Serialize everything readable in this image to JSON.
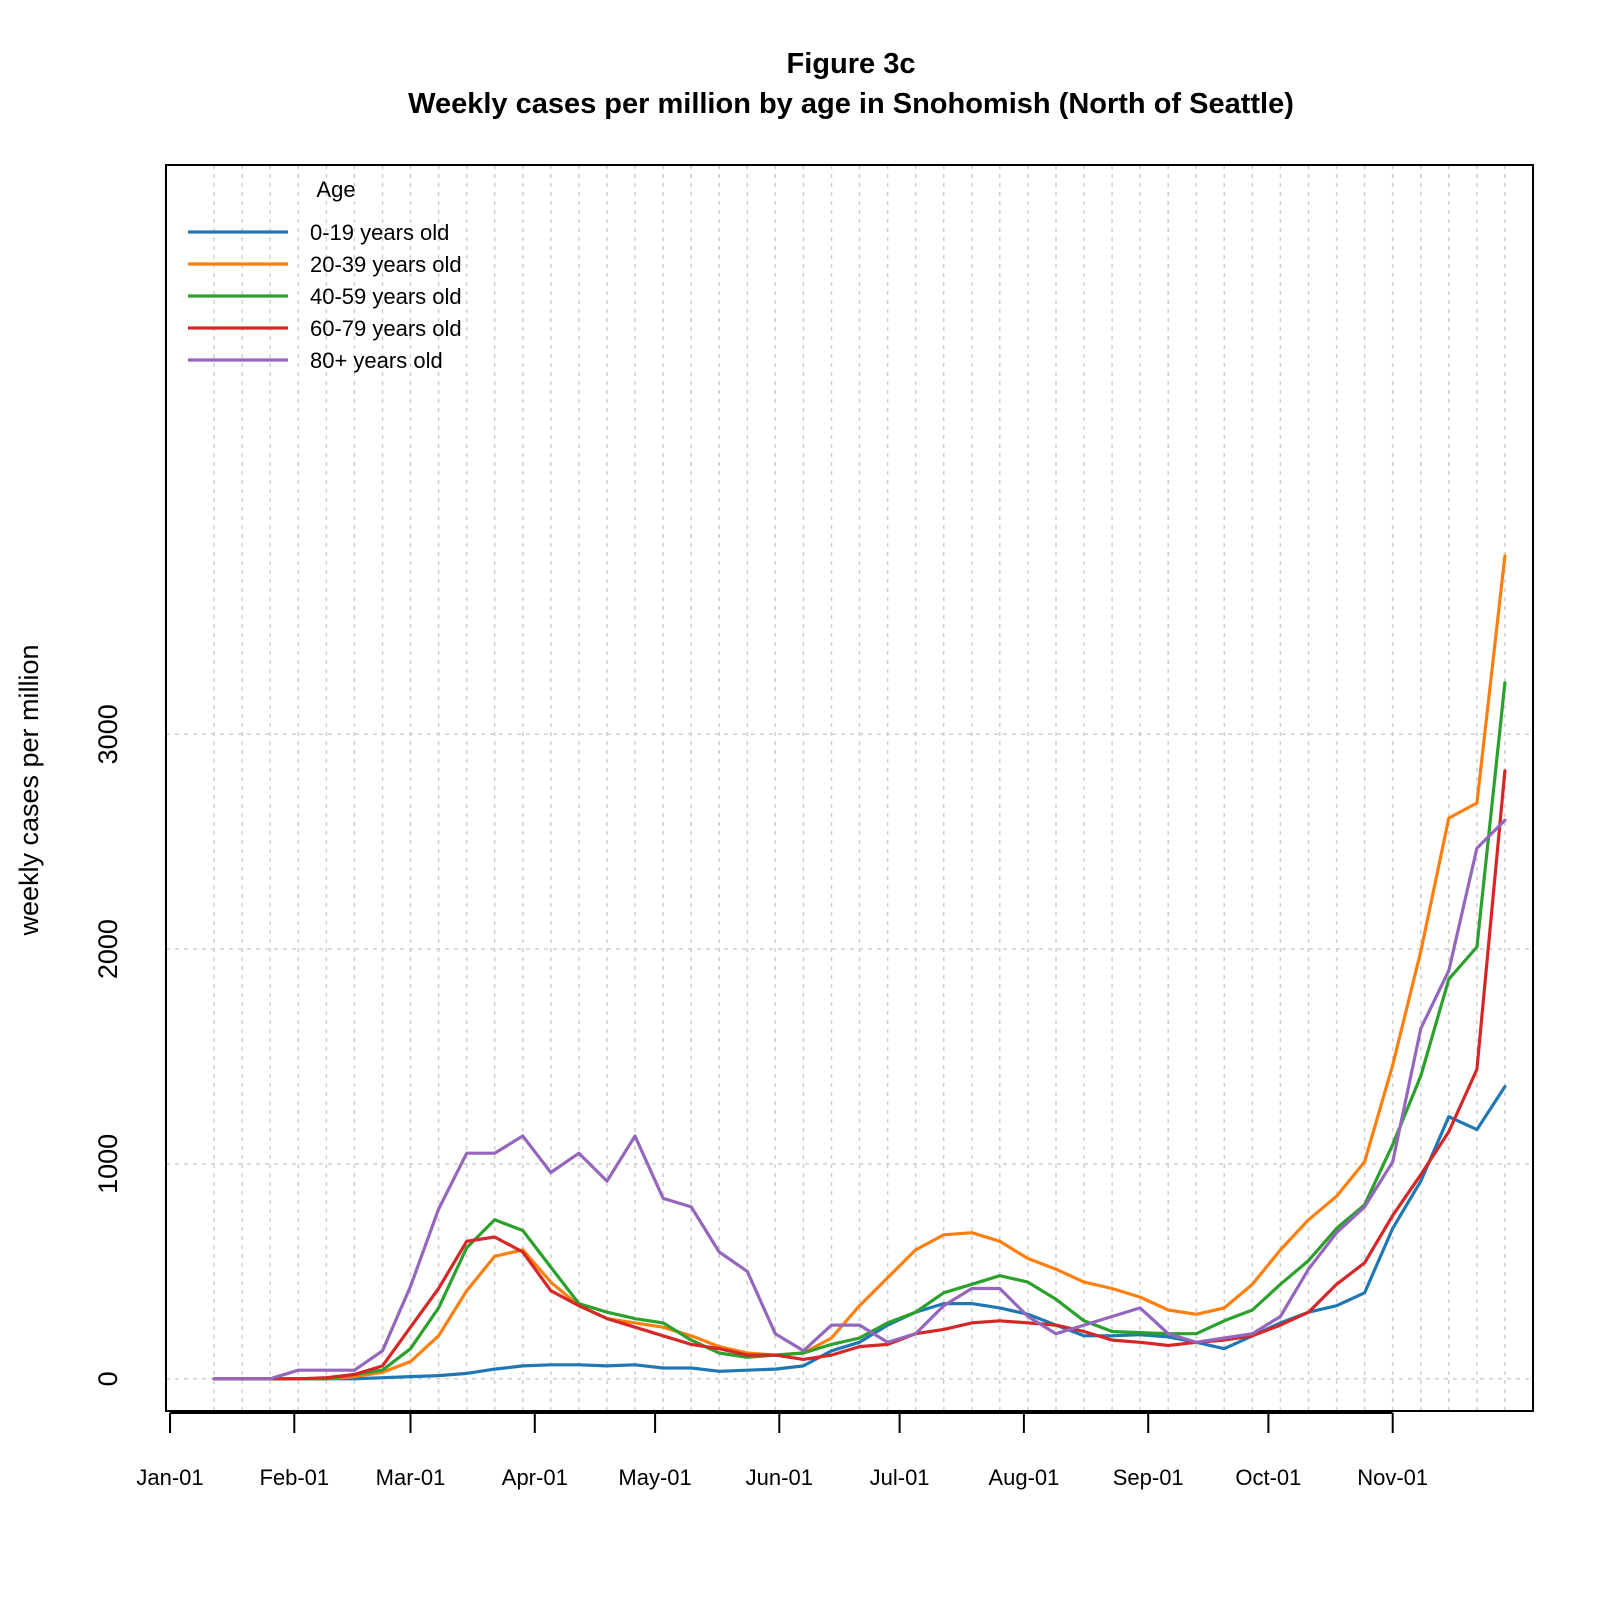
{
  "chart_data": {
    "type": "line",
    "title": "Figure 3c",
    "subtitle": "Weekly cases per million by age in Snohomish (North of Seattle)",
    "xlabel": "",
    "ylabel": "weekly cases per million",
    "xlim": [
      -1,
      340
    ],
    "ylim": [
      -150,
      5650
    ],
    "yticks": [
      0,
      1000,
      2000,
      3000
    ],
    "ytick_labels": [
      "0",
      "1000",
      "2000",
      "3000"
    ],
    "xticks": [
      {
        "label": "Jan-01",
        "day": 0
      },
      {
        "label": "Feb-01",
        "day": 31
      },
      {
        "label": "Mar-01",
        "day": 60
      },
      {
        "label": "Apr-01",
        "day": 91
      },
      {
        "label": "May-01",
        "day": 121
      },
      {
        "label": "Jun-01",
        "day": 152
      },
      {
        "label": "Jul-01",
        "day": 182
      },
      {
        "label": "Aug-01",
        "day": 213
      },
      {
        "label": "Sep-01",
        "day": 244
      },
      {
        "label": "Oct-01",
        "day": 274
      },
      {
        "label": "Nov-01",
        "day": 305
      }
    ],
    "grid": true,
    "legend": {
      "title": "Age",
      "placement": "top-left"
    },
    "x": [
      11,
      18,
      25,
      32,
      39,
      46,
      53,
      60,
      67,
      74,
      81,
      88,
      95,
      102,
      109,
      116,
      123,
      130,
      137,
      144,
      151,
      158,
      165,
      172,
      179,
      186,
      193,
      200,
      207,
      214,
      221,
      228,
      235,
      242,
      249,
      256,
      263,
      270,
      277,
      284,
      291,
      298,
      305,
      312,
      319,
      326,
      333
    ],
    "series": [
      {
        "name": "0-19 years old",
        "color": "#1f77b4",
        "values": [
          0,
          0,
          0,
          0,
          0,
          0,
          5,
          10,
          15,
          25,
          45,
          60,
          65,
          65,
          60,
          65,
          50,
          50,
          35,
          40,
          45,
          60,
          130,
          170,
          250,
          310,
          350,
          350,
          330,
          300,
          250,
          200,
          200,
          205,
          195,
          170,
          140,
          200,
          260,
          310,
          340,
          400,
          700,
          920,
          1220,
          1160,
          1360
        ]
      },
      {
        "name": "20-39 years old",
        "color": "#ff7f0e",
        "values": [
          0,
          0,
          0,
          0,
          0,
          10,
          30,
          80,
          200,
          410,
          570,
          600,
          450,
          340,
          280,
          260,
          240,
          200,
          150,
          120,
          110,
          120,
          190,
          340,
          470,
          600,
          670,
          680,
          640,
          560,
          510,
          450,
          420,
          380,
          320,
          300,
          330,
          440,
          600,
          740,
          850,
          1010,
          1460,
          1990,
          2610,
          2680,
          3830
        ]
      },
      {
        "name": "40-59 years old",
        "color": "#2ca02c",
        "values": [
          0,
          0,
          0,
          0,
          0,
          20,
          40,
          140,
          330,
          610,
          740,
          690,
          520,
          350,
          310,
          280,
          260,
          180,
          120,
          100,
          110,
          120,
          160,
          190,
          260,
          310,
          400,
          440,
          480,
          450,
          370,
          270,
          220,
          215,
          210,
          210,
          270,
          320,
          440,
          550,
          700,
          810,
          1090,
          1410,
          1860,
          2010,
          3240
        ]
      },
      {
        "name": "60-79 years old",
        "color": "#d62728",
        "values": [
          0,
          0,
          0,
          0,
          5,
          20,
          60,
          240,
          420,
          640,
          660,
          590,
          410,
          340,
          280,
          240,
          200,
          160,
          140,
          110,
          110,
          90,
          110,
          150,
          160,
          210,
          230,
          260,
          270,
          260,
          250,
          220,
          180,
          170,
          155,
          170,
          180,
          200,
          250,
          310,
          440,
          540,
          760,
          950,
          1150,
          1440,
          2830
        ]
      },
      {
        "name": "80+ years old",
        "color": "#9467bd",
        "values": [
          0,
          0,
          0,
          40,
          40,
          40,
          130,
          430,
          790,
          1050,
          1050,
          1130,
          960,
          1050,
          920,
          1130,
          840,
          800,
          590,
          500,
          210,
          130,
          250,
          250,
          170,
          210,
          340,
          420,
          420,
          290,
          210,
          250,
          290,
          330,
          210,
          170,
          190,
          210,
          290,
          510,
          680,
          800,
          1010,
          1630,
          1900,
          2470,
          2600
        ]
      }
    ]
  }
}
